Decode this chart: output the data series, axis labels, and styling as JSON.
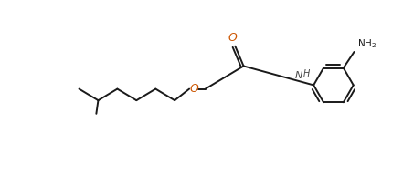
{
  "bg_color": "#ffffff",
  "line_color": "#1a1a1a",
  "O_color": "#cc5500",
  "N_color": "#4a4a4a",
  "lw": 1.4,
  "figsize": [
    4.41,
    1.91
  ],
  "dpi": 100,
  "xlim": [
    0.0,
    10.5
  ],
  "ylim": [
    0.5,
    4.5
  ]
}
